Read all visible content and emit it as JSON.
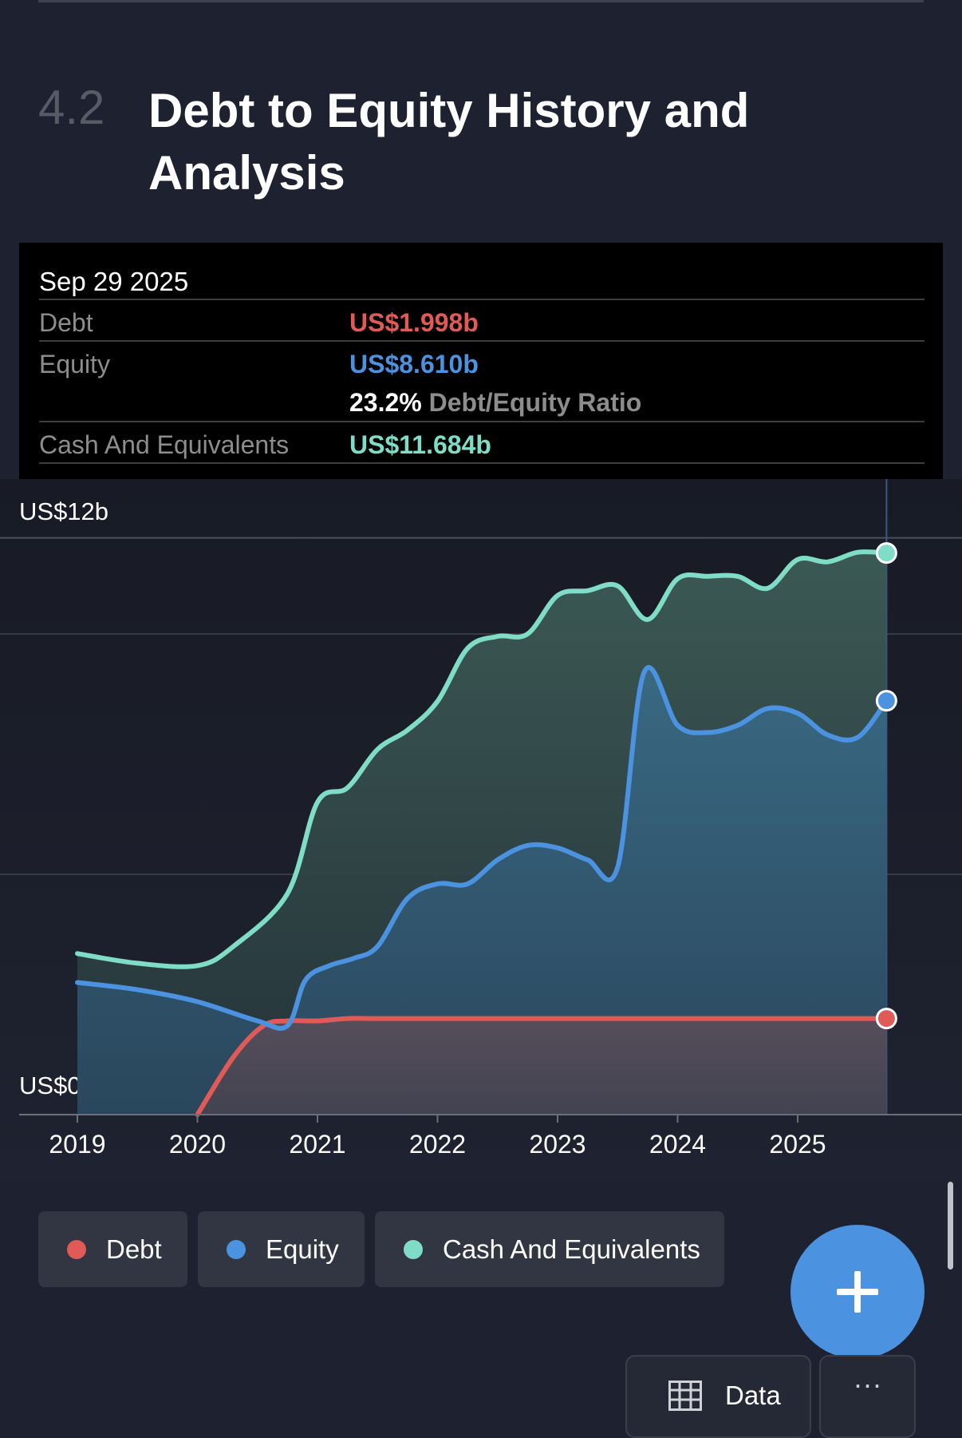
{
  "section": {
    "number": "4.2",
    "title": "Debt to Equity History and Analysis"
  },
  "tooltip": {
    "date": "Sep 29 2025",
    "debt_label": "Debt",
    "debt_value": "US$1.998b",
    "equity_label": "Equity",
    "equity_value": "US$8.610b",
    "ratio_value": "23.2%",
    "ratio_label": "Debt/Equity Ratio",
    "cash_label": "Cash And Equivalents",
    "cash_value": "US$11.684b"
  },
  "colors": {
    "debt": "#e05a57",
    "equity": "#4b93e0",
    "cash": "#7fdcc6",
    "accent": "#4b93e0"
  },
  "legend": {
    "debt": "Debt",
    "equity": "Equity",
    "cash": "Cash And Equivalents"
  },
  "buttons": {
    "data_label": "Data",
    "add_icon": "plus-icon",
    "data_icon": "table-icon",
    "more_label": "···"
  },
  "chart_data": {
    "type": "area",
    "y_labels": [
      "US$12b",
      "US$0"
    ],
    "ylim": [
      0,
      12
    ],
    "xlim": [
      2019,
      2025.75
    ],
    "x_ticks": [
      2019,
      2020,
      2021,
      2022,
      2023,
      2024,
      2025
    ],
    "tick_labels": [
      "2019",
      "2020",
      "2021",
      "2022",
      "2023",
      "2024",
      "2025"
    ],
    "grid": true,
    "highlight_x": 2025.74,
    "series": [
      {
        "name": "Debt",
        "color": "#e05a57",
        "x": [
          2020.0,
          2020.3,
          2020.55,
          2020.75,
          2021.0,
          2021.25,
          2021.5,
          2022.0,
          2022.5,
          2023.0,
          2023.5,
          2024.0,
          2024.5,
          2025.0,
          2025.5,
          2025.74
        ],
        "y": [
          0.0,
          1.2,
          1.85,
          1.95,
          1.95,
          2.0,
          2.0,
          2.0,
          2.0,
          2.0,
          2.0,
          2.0,
          2.0,
          2.0,
          2.0,
          2.0
        ]
      },
      {
        "name": "Equity",
        "color": "#4b93e0",
        "x": [
          2019.0,
          2019.5,
          2020.0,
          2020.5,
          2020.75,
          2020.9,
          2021.1,
          2021.3,
          2021.5,
          2021.75,
          2022.0,
          2022.25,
          2022.5,
          2022.75,
          2023.0,
          2023.25,
          2023.5,
          2023.72,
          2024.0,
          2024.25,
          2024.5,
          2024.75,
          2025.0,
          2025.25,
          2025.5,
          2025.74
        ],
        "y": [
          2.75,
          2.6,
          2.35,
          1.95,
          1.85,
          2.8,
          3.1,
          3.25,
          3.5,
          4.5,
          4.8,
          4.8,
          5.3,
          5.6,
          5.55,
          5.3,
          5.15,
          9.2,
          8.1,
          7.95,
          8.1,
          8.45,
          8.35,
          7.9,
          7.85,
          8.61
        ]
      },
      {
        "name": "Cash And Equivalents",
        "color": "#7fdcc6",
        "x": [
          2019.0,
          2019.5,
          2020.0,
          2020.3,
          2020.75,
          2021.0,
          2021.25,
          2021.5,
          2021.75,
          2022.0,
          2022.25,
          2022.5,
          2022.75,
          2023.0,
          2023.25,
          2023.5,
          2023.75,
          2024.0,
          2024.25,
          2024.5,
          2024.75,
          2025.0,
          2025.25,
          2025.5,
          2025.74
        ],
        "y": [
          3.35,
          3.15,
          3.1,
          3.5,
          4.6,
          6.5,
          6.8,
          7.6,
          8.0,
          8.6,
          9.7,
          9.95,
          10.0,
          10.8,
          10.9,
          11.0,
          10.3,
          11.15,
          11.2,
          11.2,
          10.95,
          11.55,
          11.5,
          11.7,
          11.684
        ]
      }
    ]
  }
}
